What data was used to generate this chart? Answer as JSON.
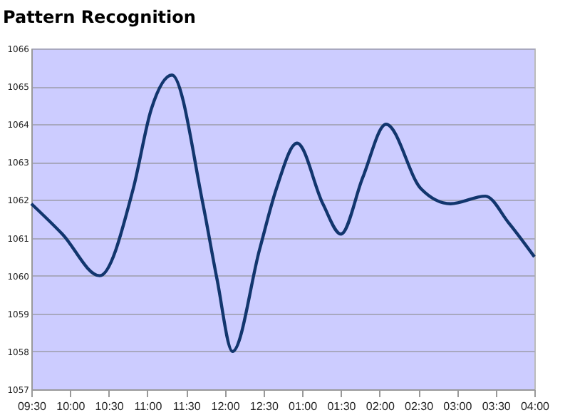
{
  "chart_data": {
    "type": "line",
    "title": "Pattern Recognition",
    "x": [
      "2000-01-01T09:30",
      "2000-01-01T09:54",
      "2000-01-01T10:23",
      "2000-01-01T10:49",
      "2000-01-01T11:03",
      "2000-01-01T11:19",
      "2000-01-01T11:43",
      "2000-01-01T11:54",
      "2000-01-01T12:06",
      "2000-01-01T12:27",
      "2000-01-01T12:40",
      "2000-01-01T12:56",
      "2000-01-01T13:16",
      "2000-01-01T13:30",
      "2000-01-01T13:47",
      "2000-01-01T14:05",
      "2000-01-01T14:32",
      "2000-01-01T14:55",
      "2000-01-01T15:22",
      "2000-01-01T15:40",
      "2000-01-01T16:00"
    ],
    "series": [
      {
        "color": "#12366e",
        "values": [
          1061.9,
          1061.1,
          1060.0,
          1062.3,
          1064.4,
          1065.3,
          1061.9,
          1059.9,
          1058.0,
          1060.7,
          1062.3,
          1063.5,
          1061.9,
          1061.1,
          1062.6,
          1064.0,
          1062.3,
          1061.9,
          1062.1,
          1061.4,
          1060.5
        ]
      }
    ],
    "xlim": [
      "2000-01-01T09:30",
      "2000-01-01T16:00"
    ],
    "xticks": [
      {
        "value": "2000-01-01T09:30",
        "label": "09:30"
      },
      {
        "value": "2000-01-01T10:00",
        "label": "10:00"
      },
      {
        "value": "2000-01-01T10:30",
        "label": "10:30"
      },
      {
        "value": "2000-01-01T11:00",
        "label": "11:00"
      },
      {
        "value": "2000-01-01T11:30",
        "label": "11:30"
      },
      {
        "value": "2000-01-01T12:00",
        "label": "12:00"
      },
      {
        "value": "2000-01-01T12:30",
        "label": "12:30"
      },
      {
        "value": "2000-01-01T13:00",
        "label": "01:00"
      },
      {
        "value": "2000-01-01T13:30",
        "label": "01:30"
      },
      {
        "value": "2000-01-01T14:00",
        "label": "02:00"
      },
      {
        "value": "2000-01-01T14:30",
        "label": "02:30"
      },
      {
        "value": "2000-01-01T15:00",
        "label": "03:00"
      },
      {
        "value": "2000-01-01T15:30",
        "label": "03:30"
      },
      {
        "value": "2000-01-01T16:00",
        "label": "04:00"
      }
    ],
    "ylim": [
      1057,
      1066
    ],
    "yticks": [
      1057,
      1058,
      1059,
      1060,
      1061,
      1062,
      1063,
      1064,
      1065,
      1066
    ],
    "grid": "y",
    "line_style": "solid",
    "marker": "none"
  }
}
